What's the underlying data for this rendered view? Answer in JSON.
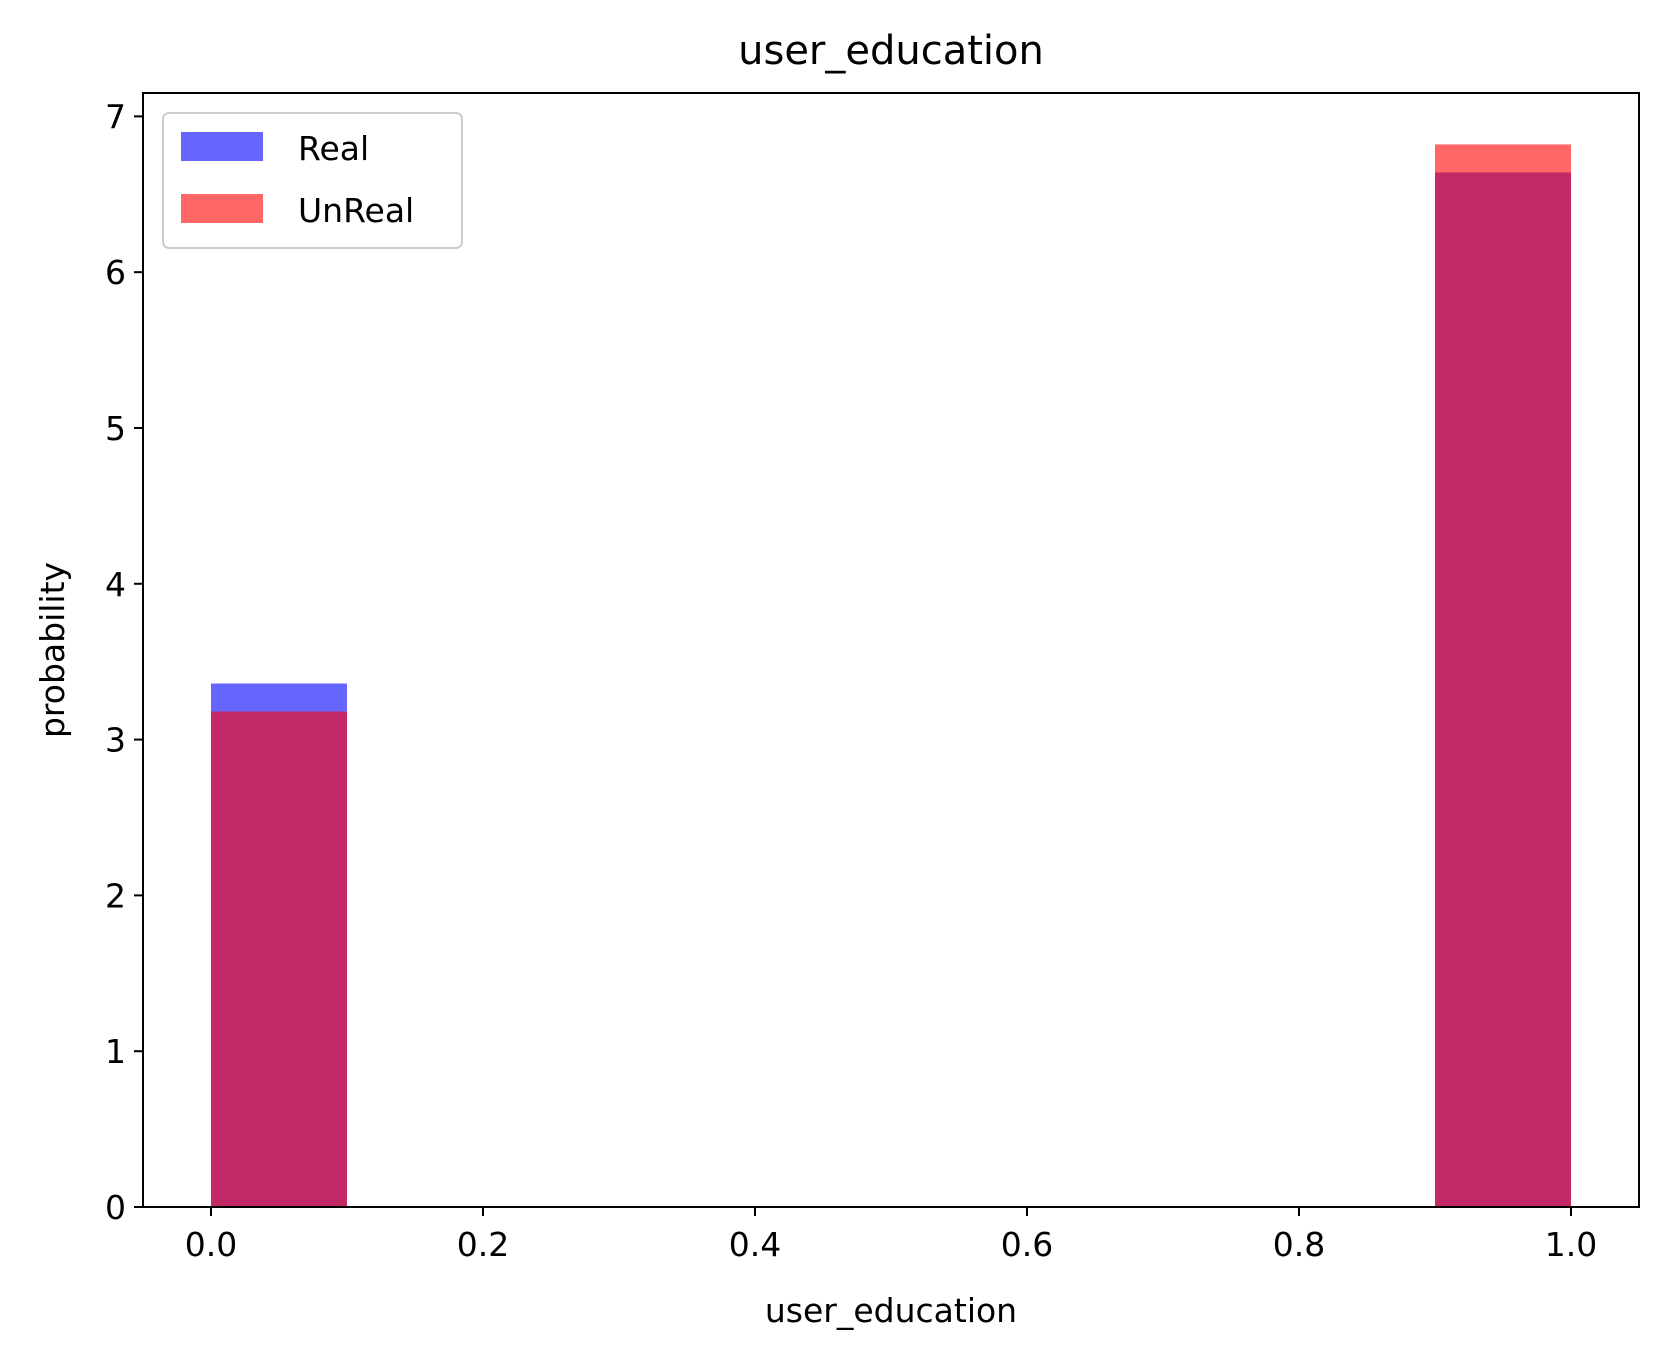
{
  "chart_data": {
    "type": "bar",
    "title": "user_education",
    "xlabel": "user_education",
    "ylabel": "probability",
    "xlim": [
      -0.05,
      1.05
    ],
    "ylim": [
      0,
      7.15
    ],
    "xticks": [
      "0.0",
      "0.2",
      "0.4",
      "0.6",
      "0.8",
      "1.0"
    ],
    "yticks": [
      "0",
      "1",
      "2",
      "3",
      "4",
      "5",
      "6",
      "7"
    ],
    "grid": false,
    "legend_position": "top-left",
    "bin_width": 0.1,
    "series": [
      {
        "name": "Real",
        "color": "#0000ff",
        "opacity": 0.6,
        "bins": [
          {
            "x0": 0.0,
            "x1": 0.1,
            "value": 3.36
          },
          {
            "x0": 0.9,
            "x1": 1.0,
            "value": 6.64
          }
        ]
      },
      {
        "name": "UnReal",
        "color": "#ff0000",
        "opacity": 0.6,
        "bins": [
          {
            "x0": 0.0,
            "x1": 0.1,
            "value": 3.18
          },
          {
            "x0": 0.9,
            "x1": 1.0,
            "value": 6.82
          }
        ]
      }
    ]
  }
}
